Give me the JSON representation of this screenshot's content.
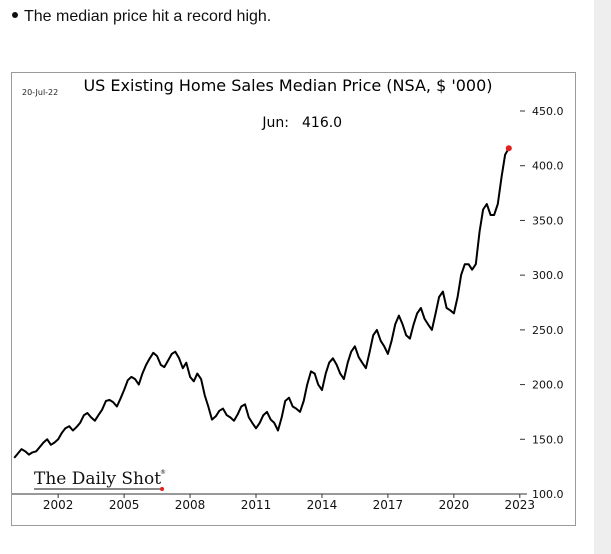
{
  "bullet": {
    "text": "The median price hit a record high."
  },
  "chart_data": {
    "type": "line",
    "date_stamp": "20-Jul-22",
    "title": "US Existing Home Sales Median Price (NSA, $ '000)",
    "annotation": {
      "label": "Jun:",
      "value": "416.0"
    },
    "x_ticks": [
      "2002",
      "2005",
      "2008",
      "2011",
      "2014",
      "2017",
      "2020",
      "2023"
    ],
    "y_ticks": [
      "450.0",
      "400.0",
      "350.0",
      "300.0",
      "250.0",
      "200.0",
      "150.0",
      "100.0"
    ],
    "xlim": [
      1999.9,
      2023.1
    ],
    "ylim": [
      100,
      450
    ],
    "grid": false,
    "line_color": "#000000",
    "last_point_color": "#e0201b",
    "series": [
      {
        "x": [
          2000.0,
          2000.17,
          2000.33,
          2000.5,
          2000.67,
          2000.83,
          2001.0,
          2001.17,
          2001.33,
          2001.5,
          2001.67,
          2001.83,
          2002.0,
          2002.17,
          2002.33,
          2002.5,
          2002.67,
          2002.83,
          2003.0,
          2003.17,
          2003.33,
          2003.5,
          2003.67,
          2003.83,
          2004.0,
          2004.17,
          2004.33,
          2004.5,
          2004.67,
          2004.83,
          2005.0,
          2005.17,
          2005.33,
          2005.5,
          2005.67,
          2005.83,
          2006.0,
          2006.17,
          2006.33,
          2006.5,
          2006.67,
          2006.83,
          2007.0,
          2007.17,
          2007.33,
          2007.5,
          2007.67,
          2007.83,
          2008.0,
          2008.17,
          2008.33,
          2008.5,
          2008.67,
          2008.83,
          2009.0,
          2009.17,
          2009.33,
          2009.5,
          2009.67,
          2009.83,
          2010.0,
          2010.17,
          2010.33,
          2010.5,
          2010.67,
          2010.83,
          2011.0,
          2011.17,
          2011.33,
          2011.5,
          2011.67,
          2011.83,
          2012.0,
          2012.17,
          2012.33,
          2012.5,
          2012.67,
          2012.83,
          2013.0,
          2013.17,
          2013.33,
          2013.5,
          2013.67,
          2013.83,
          2014.0,
          2014.17,
          2014.33,
          2014.5,
          2014.67,
          2014.83,
          2015.0,
          2015.17,
          2015.33,
          2015.5,
          2015.67,
          2015.83,
          2016.0,
          2016.17,
          2016.33,
          2016.5,
          2016.67,
          2016.83,
          2017.0,
          2017.17,
          2017.33,
          2017.5,
          2017.67,
          2017.83,
          2018.0,
          2018.17,
          2018.33,
          2018.5,
          2018.67,
          2018.83,
          2019.0,
          2019.17,
          2019.33,
          2019.5,
          2019.67,
          2019.83,
          2020.0,
          2020.17,
          2020.33,
          2020.5,
          2020.67,
          2020.83,
          2021.0,
          2021.17,
          2021.33,
          2021.5,
          2021.67,
          2021.83,
          2022.0,
          2022.17,
          2022.33,
          2022.5
        ],
        "values": [
          133,
          137,
          141,
          139,
          136,
          138,
          139,
          143,
          147,
          150,
          145,
          147,
          150,
          156,
          160,
          162,
          158,
          161,
          165,
          172,
          174,
          170,
          167,
          172,
          177,
          185,
          186,
          184,
          180,
          187,
          195,
          204,
          207,
          205,
          200,
          210,
          218,
          224,
          229,
          226,
          218,
          216,
          222,
          228,
          230,
          224,
          215,
          220,
          207,
          203,
          210,
          205,
          190,
          180,
          168,
          171,
          176,
          178,
          172,
          170,
          167,
          173,
          180,
          182,
          170,
          165,
          160,
          165,
          172,
          175,
          168,
          165,
          158,
          170,
          185,
          188,
          180,
          178,
          175,
          185,
          200,
          212,
          210,
          200,
          195,
          210,
          220,
          224,
          218,
          210,
          205,
          220,
          230,
          235,
          225,
          220,
          215,
          230,
          245,
          250,
          240,
          235,
          228,
          240,
          255,
          263,
          255,
          245,
          242,
          255,
          265,
          270,
          260,
          255,
          250,
          265,
          280,
          285,
          270,
          268,
          265,
          280,
          300,
          310,
          310,
          305,
          310,
          340,
          360,
          365,
          355,
          355,
          365,
          390,
          410,
          416
        ]
      }
    ]
  },
  "logo": {
    "text": "The Daily Shot",
    "mark": "®"
  }
}
